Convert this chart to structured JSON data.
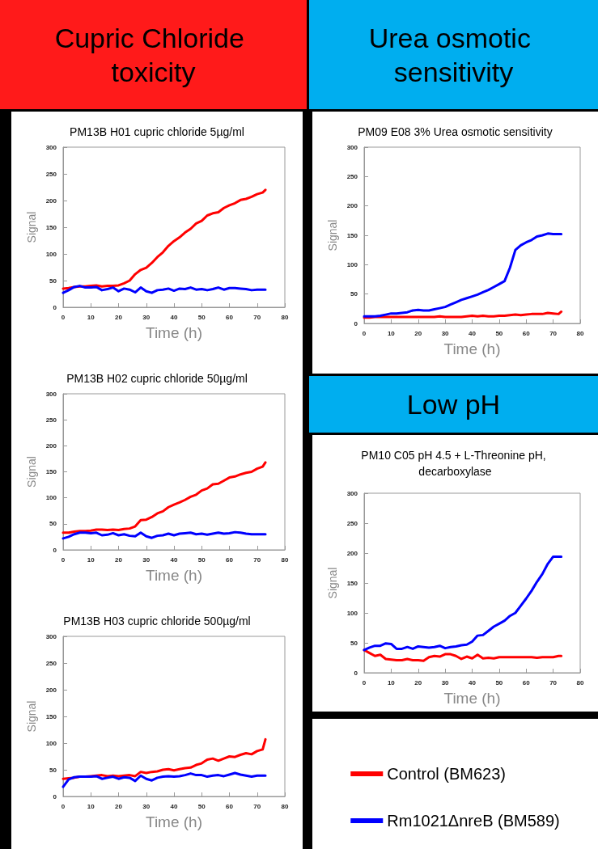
{
  "chart_data": [
    {
      "type": "other",
      "title": "Cupric Chloride toxicity"
    },
    {
      "type": "other",
      "title": "Urea osmotic sensitivity"
    },
    {
      "type": "line",
      "title": "PM13B H01 cupric chloride 5µg/ml",
      "xlabel": "Time (h)",
      "ylabel": "Signal",
      "xlim": [
        0,
        80
      ],
      "xticks": [
        0,
        10,
        20,
        30,
        40,
        50,
        60,
        70,
        80
      ],
      "ylim": [
        0,
        300
      ],
      "yticks": [
        0,
        50,
        100,
        150,
        200,
        250,
        300
      ],
      "grid": false,
      "legend": false,
      "marker": "none",
      "line_style": "solid",
      "x": [
        0,
        2,
        4,
        6,
        8,
        10,
        12,
        14,
        16,
        18,
        20,
        22,
        24,
        26,
        28,
        30,
        32,
        34,
        36,
        38,
        40,
        42,
        44,
        46,
        48,
        50,
        52,
        54,
        56,
        58,
        60,
        62,
        64,
        66,
        68,
        70,
        72,
        73
      ],
      "series": [
        {
          "color": "#ff0000",
          "values": [
            35,
            36,
            38,
            39,
            39,
            40,
            41,
            39,
            40,
            40,
            41,
            45,
            50,
            62,
            70,
            74,
            83,
            94,
            103,
            115,
            124,
            131,
            140,
            147,
            157,
            162,
            172,
            176,
            178,
            186,
            191,
            195,
            201,
            203,
            207,
            212,
            215,
            220
          ]
        },
        {
          "color": "#0000ff",
          "values": [
            27,
            32,
            38,
            40,
            37,
            37,
            38,
            32,
            34,
            37,
            30,
            35,
            33,
            28,
            37,
            30,
            27,
            32,
            33,
            35,
            31,
            35,
            34,
            37,
            33,
            34,
            32,
            34,
            37,
            33,
            36,
            36,
            35,
            34,
            32,
            33,
            33,
            33
          ]
        }
      ]
    },
    {
      "type": "line",
      "title": "PM13B H02 cupric chloride 50µg/ml",
      "xlabel": "Time (h)",
      "ylabel": "Signal",
      "xlim": [
        0,
        80
      ],
      "xticks": [
        0,
        10,
        20,
        30,
        40,
        50,
        60,
        70,
        80
      ],
      "ylim": [
        0,
        300
      ],
      "yticks": [
        0,
        50,
        100,
        150,
        200,
        250,
        300
      ],
      "grid": false,
      "legend": false,
      "marker": "none",
      "line_style": "solid",
      "x": [
        0,
        2,
        4,
        6,
        8,
        10,
        12,
        14,
        16,
        18,
        20,
        22,
        24,
        26,
        28,
        30,
        32,
        34,
        36,
        38,
        40,
        42,
        44,
        46,
        48,
        50,
        52,
        54,
        56,
        58,
        60,
        62,
        64,
        66,
        68,
        70,
        72,
        73
      ],
      "series": [
        {
          "color": "#ff0000",
          "values": [
            33,
            33,
            35,
            36,
            36,
            37,
            39,
            39,
            38,
            39,
            38,
            40,
            41,
            45,
            57,
            58,
            63,
            70,
            74,
            82,
            87,
            91,
            96,
            102,
            106,
            114,
            118,
            126,
            127,
            133,
            139,
            141,
            145,
            148,
            150,
            156,
            160,
            168
          ]
        },
        {
          "color": "#0000ff",
          "values": [
            22,
            25,
            30,
            33,
            33,
            32,
            33,
            28,
            29,
            32,
            28,
            30,
            27,
            26,
            33,
            26,
            23,
            27,
            28,
            31,
            28,
            31,
            32,
            33,
            30,
            31,
            29,
            31,
            33,
            31,
            32,
            34,
            33,
            31,
            30,
            30,
            30,
            30
          ]
        }
      ]
    },
    {
      "type": "line",
      "title": "PM13B H03 cupric chloride 500µg/ml",
      "xlabel": "Time (h)",
      "ylabel": "Signal",
      "xlim": [
        0,
        80
      ],
      "xticks": [
        0,
        10,
        20,
        30,
        40,
        50,
        60,
        70,
        80
      ],
      "ylim": [
        0,
        300
      ],
      "yticks": [
        0,
        50,
        100,
        150,
        200,
        250,
        300
      ],
      "grid": false,
      "legend": false,
      "marker": "none",
      "line_style": "solid",
      "x": [
        0,
        2,
        4,
        6,
        8,
        10,
        12,
        14,
        16,
        18,
        20,
        22,
        24,
        26,
        28,
        30,
        32,
        34,
        36,
        38,
        40,
        42,
        44,
        46,
        48,
        50,
        52,
        54,
        56,
        58,
        60,
        62,
        64,
        66,
        68,
        70,
        72,
        73
      ],
      "series": [
        {
          "color": "#ff0000",
          "values": [
            33,
            34,
            35,
            37,
            37,
            38,
            39,
            40,
            38,
            39,
            38,
            39,
            40,
            38,
            46,
            44,
            46,
            47,
            50,
            51,
            49,
            51,
            53,
            54,
            59,
            62,
            69,
            71,
            67,
            71,
            75,
            74,
            78,
            81,
            79,
            85,
            88,
            107
          ]
        },
        {
          "color": "#0000ff",
          "values": [
            18,
            32,
            36,
            37,
            37,
            37,
            38,
            33,
            35,
            37,
            33,
            36,
            35,
            29,
            39,
            33,
            30,
            35,
            37,
            38,
            37,
            38,
            40,
            43,
            40,
            40,
            37,
            39,
            40,
            38,
            41,
            44,
            41,
            39,
            37,
            39,
            39,
            39
          ]
        }
      ]
    },
    {
      "type": "line",
      "title": "PM09 E08 3% Urea osmotic sensitivity",
      "xlabel": "Time (h)",
      "ylabel": "Signal",
      "xlim": [
        0,
        80
      ],
      "xticks": [
        0,
        10,
        20,
        30,
        40,
        50,
        60,
        70,
        80
      ],
      "ylim": [
        0,
        300
      ],
      "yticks": [
        0,
        50,
        100,
        150,
        200,
        250,
        300
      ],
      "grid": false,
      "legend": false,
      "marker": "none",
      "line_style": "solid",
      "x": [
        0,
        2,
        4,
        6,
        8,
        10,
        12,
        14,
        16,
        18,
        20,
        22,
        24,
        26,
        28,
        30,
        32,
        34,
        36,
        38,
        40,
        42,
        44,
        46,
        48,
        50,
        52,
        54,
        56,
        58,
        60,
        62,
        64,
        66,
        68,
        70,
        72,
        73
      ],
      "series": [
        {
          "color": "#ff0000",
          "values": [
            10,
            10,
            11,
            11,
            11,
            11,
            11,
            11,
            11,
            11,
            11,
            11,
            11,
            11,
            12,
            11,
            11,
            11,
            11,
            12,
            13,
            12,
            13,
            12,
            12,
            13,
            13,
            14,
            15,
            14,
            15,
            16,
            16,
            16,
            18,
            17,
            16,
            20
          ]
        },
        {
          "color": "#0000ff",
          "values": [
            12,
            12,
            12,
            13,
            15,
            17,
            17,
            18,
            19,
            22,
            23,
            22,
            22,
            24,
            26,
            28,
            32,
            36,
            40,
            43,
            46,
            49,
            53,
            57,
            62,
            67,
            72,
            95,
            125,
            133,
            138,
            142,
            148,
            150,
            153,
            152,
            152,
            152
          ]
        }
      ]
    },
    {
      "type": "other",
      "title": "Low pH"
    },
    {
      "type": "line",
      "title": "PM10 C05 pH 4.5 + L-Threonine pH, decarboxylase",
      "xlabel": "Time (h)",
      "ylabel": "Signal",
      "xlim": [
        0,
        80
      ],
      "xticks": [
        0,
        10,
        20,
        30,
        40,
        50,
        60,
        70,
        80
      ],
      "ylim": [
        0,
        300
      ],
      "yticks": [
        0,
        50,
        100,
        150,
        200,
        250,
        300
      ],
      "grid": false,
      "legend": "bottom",
      "marker": "none",
      "line_style": "solid",
      "x": [
        0,
        2,
        4,
        6,
        8,
        10,
        12,
        14,
        16,
        18,
        20,
        22,
        24,
        26,
        28,
        30,
        32,
        34,
        36,
        38,
        40,
        42,
        44,
        46,
        48,
        50,
        52,
        54,
        56,
        58,
        60,
        62,
        64,
        66,
        68,
        70,
        72,
        73
      ],
      "series": [
        {
          "name": "Control (BM623)",
          "color": "#ff0000",
          "values": [
            38,
            33,
            28,
            30,
            23,
            22,
            21,
            21,
            23,
            21,
            21,
            20,
            26,
            28,
            27,
            31,
            31,
            28,
            23,
            27,
            24,
            30,
            24,
            25,
            24,
            26,
            26,
            26,
            26,
            26,
            26,
            26,
            25,
            26,
            26,
            26,
            28,
            28
          ]
        },
        {
          "name": "Rm1021ΔnreB (BM589)",
          "color": "#0000ff",
          "values": [
            38,
            42,
            45,
            45,
            49,
            48,
            40,
            40,
            43,
            40,
            44,
            43,
            42,
            43,
            45,
            41,
            43,
            44,
            46,
            47,
            52,
            62,
            63,
            70,
            77,
            82,
            87,
            95,
            100,
            112,
            124,
            137,
            152,
            165,
            182,
            194,
            194,
            194
          ]
        }
      ]
    }
  ]
}
